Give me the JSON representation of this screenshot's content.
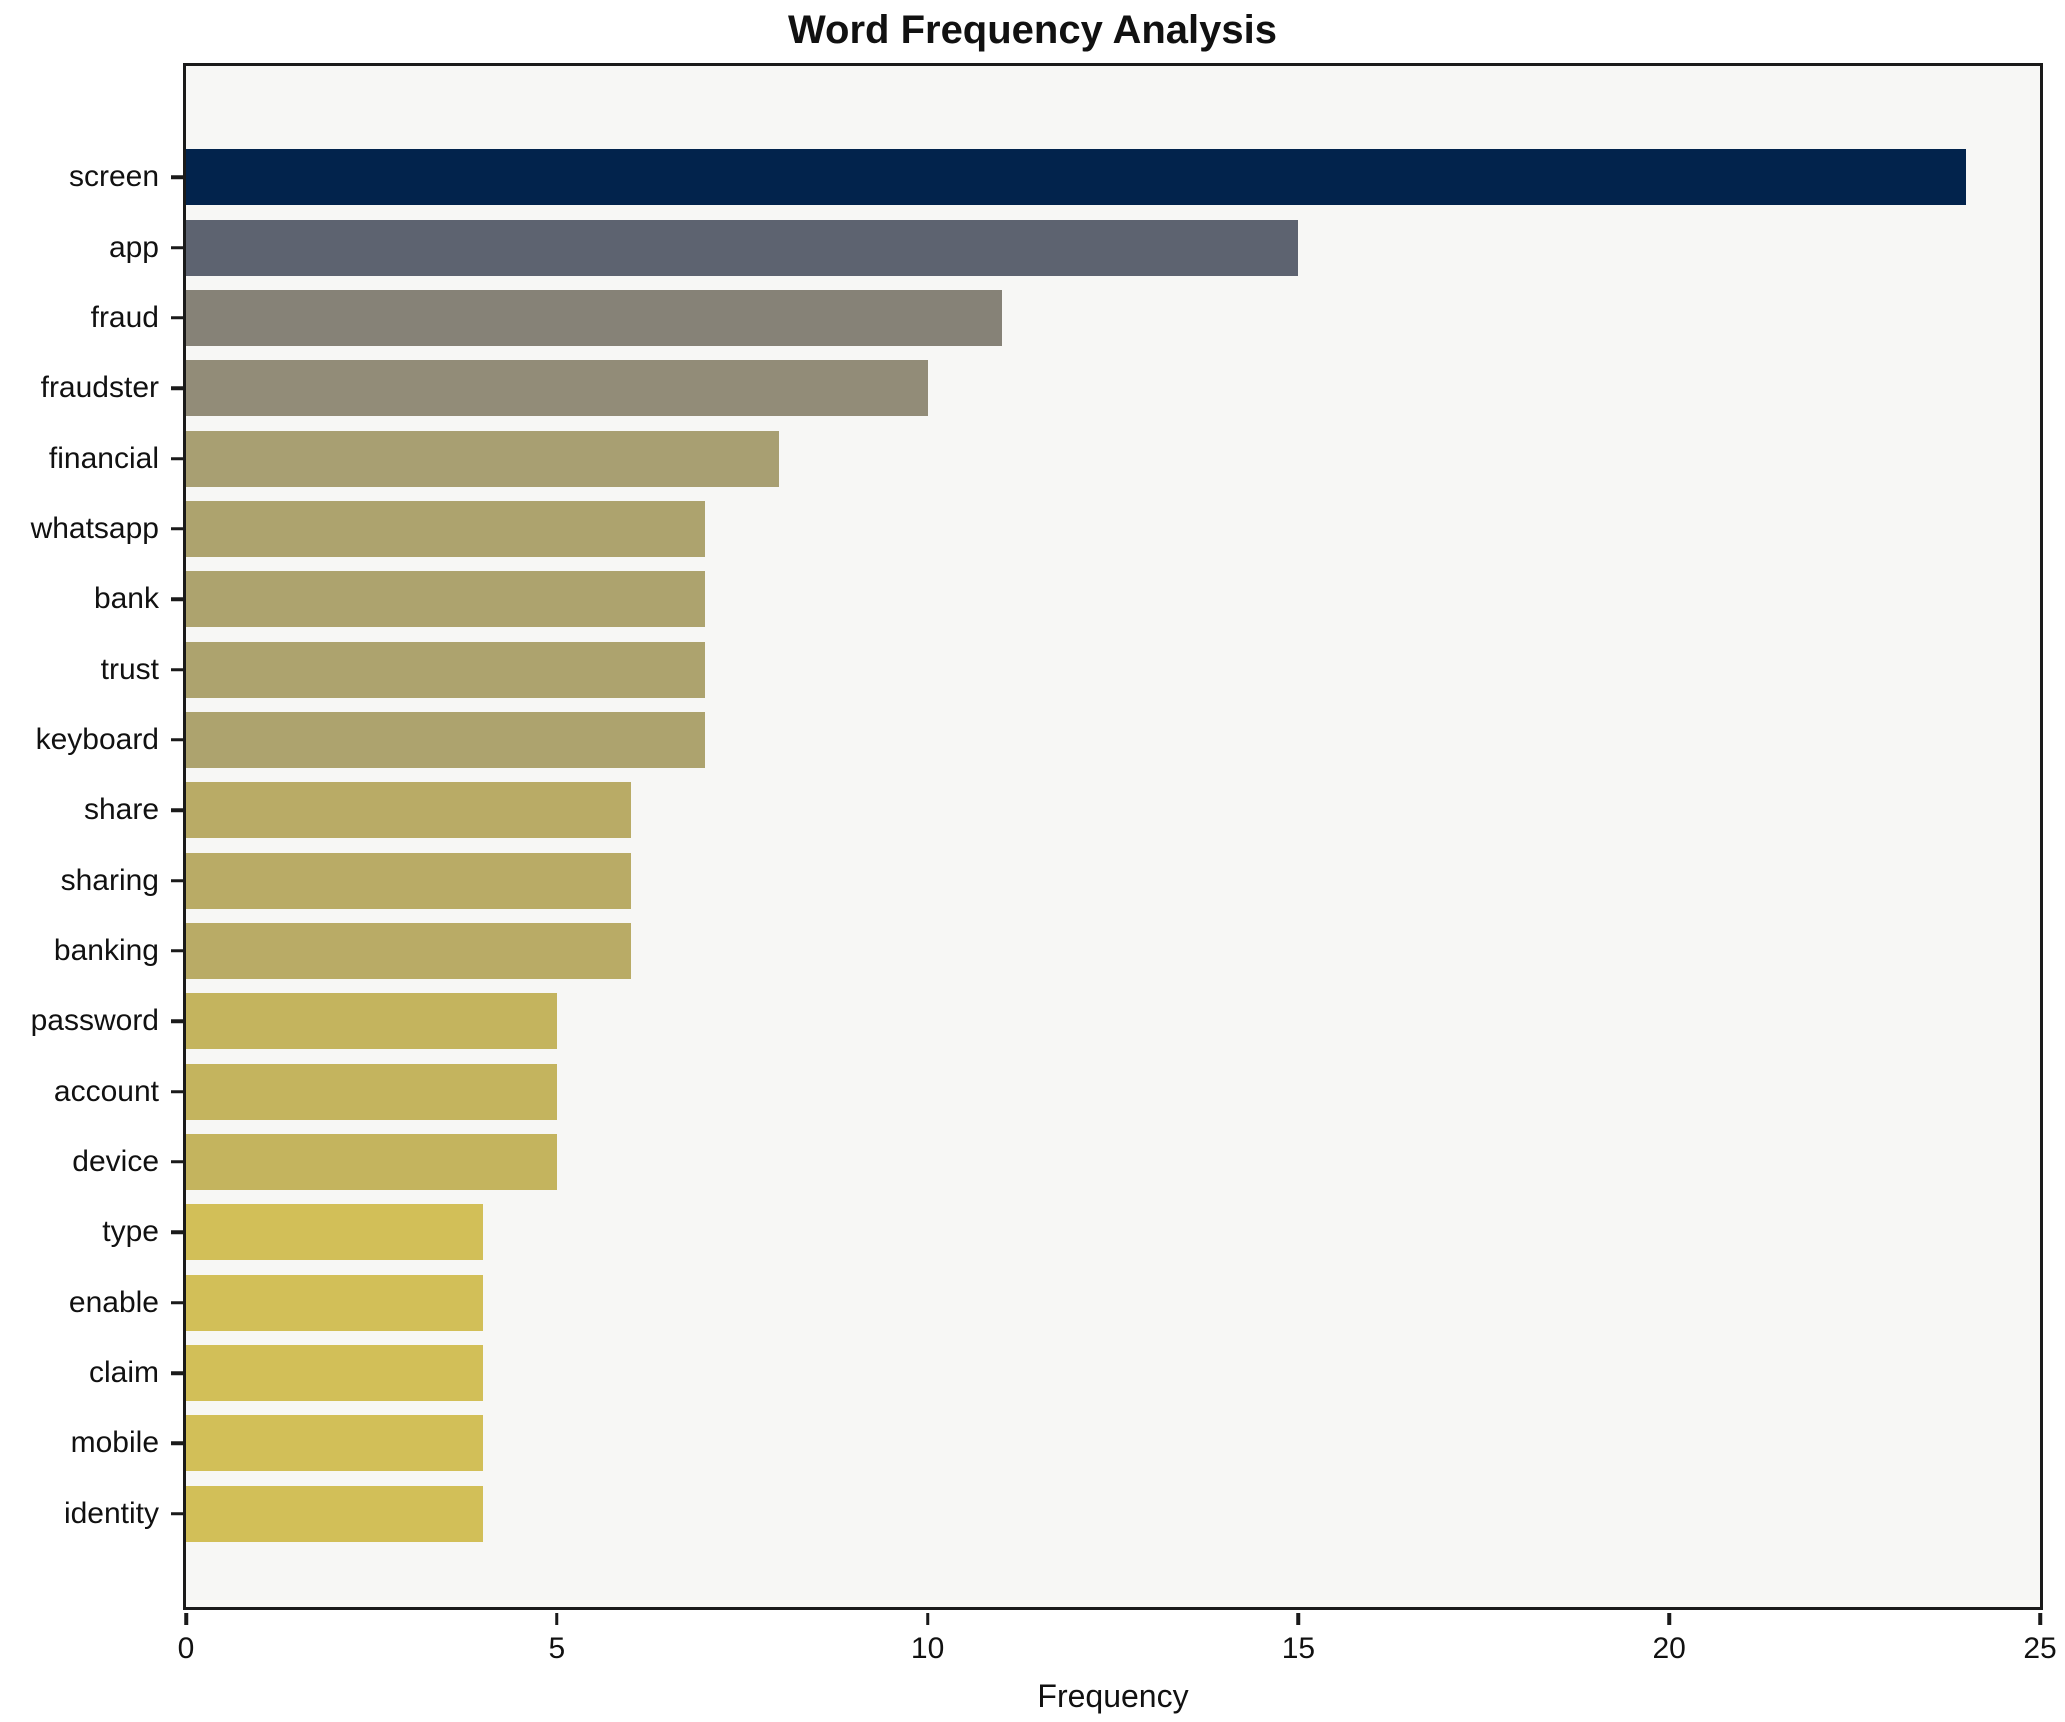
{
  "chart_data": {
    "type": "bar",
    "orientation": "horizontal",
    "title": "Word Frequency Analysis",
    "xlabel": "Frequency",
    "ylabel": "",
    "xlim": [
      0,
      25
    ],
    "xticks": [
      0,
      5,
      10,
      15,
      20,
      25
    ],
    "grid": false,
    "legend": false,
    "figure_bg": "#ffffff",
    "plot_bg": "#f7f7f5",
    "axis_color": "#1a1a1a",
    "categories": [
      "screen",
      "app",
      "fraud",
      "fraudster",
      "financial",
      "whatsapp",
      "bank",
      "trust",
      "keyboard",
      "share",
      "sharing",
      "banking",
      "password",
      "account",
      "device",
      "type",
      "enable",
      "claim",
      "mobile",
      "identity"
    ],
    "values": [
      24,
      15,
      11,
      10,
      8,
      7,
      7,
      7,
      7,
      6,
      6,
      6,
      5,
      5,
      5,
      4,
      4,
      4,
      4,
      4
    ],
    "bar_colors": [
      "#02234c",
      "#5d6370",
      "#868277",
      "#928c78",
      "#a89f72",
      "#ada36e",
      "#ada36e",
      "#ada36e",
      "#ada36e",
      "#b9ab66",
      "#b9ab66",
      "#b9ab66",
      "#c4b45e",
      "#c4b45e",
      "#c4b45e",
      "#d2bf58",
      "#d2bf58",
      "#d2bf58",
      "#d2bf58",
      "#d2bf58"
    ]
  }
}
